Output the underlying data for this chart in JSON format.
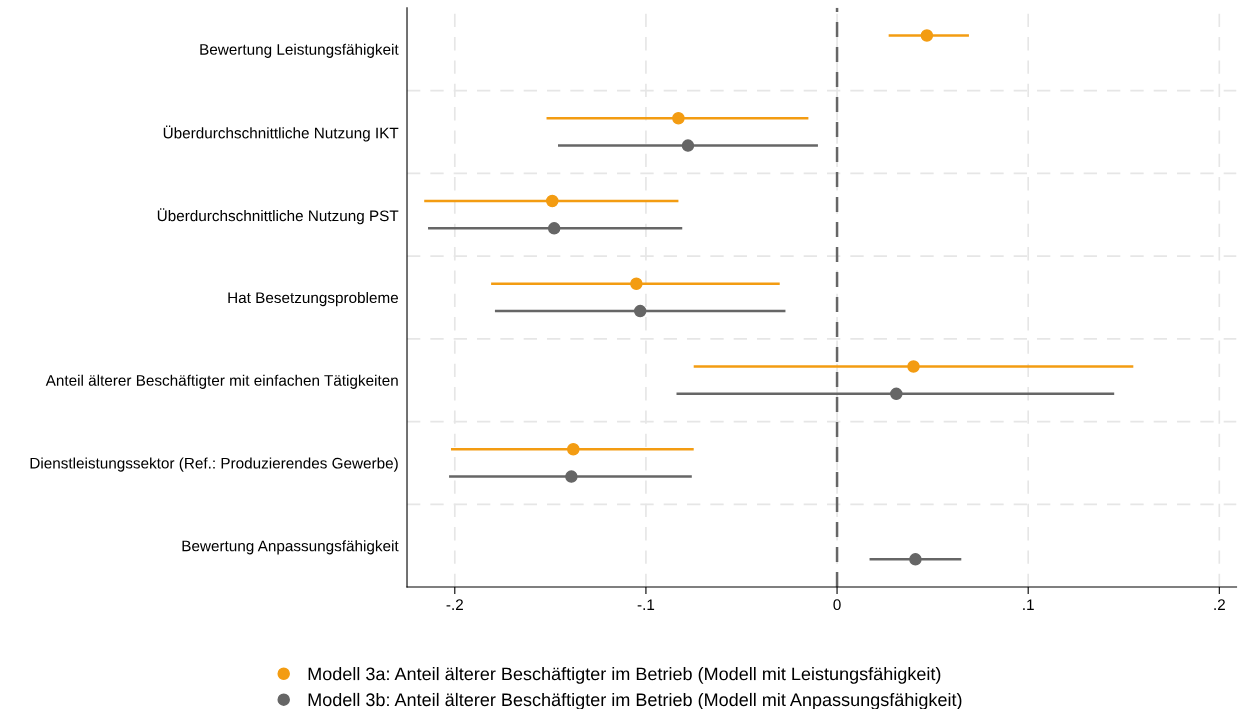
{
  "chart_data": {
    "type": "scatter",
    "orientation": "horizontal",
    "categories": [
      "Bewertung Leistungsfähigkeit",
      "Überdurchschnittliche Nutzung IKT",
      "Überdurchschnittliche Nutzung PST",
      "Hat Besetzungsprobleme",
      "Anteil älterer Beschäftigter mit einfachen Tätigkeiten",
      "Dienstleistungssektor (Ref.: Produzierendes Gewerbe)",
      "Bewertung Anpassungsfähigkeit"
    ],
    "series": [
      {
        "name": "Modell 3a: Anteil älterer Beschäftigter im Betrieb (Modell mit Leistungsfähigkeit)",
        "color": "#f39c12",
        "values": [
          0.047,
          -0.083,
          -0.149,
          -0.105,
          0.04,
          -0.138,
          null
        ],
        "errors": [
          [
            0.027,
            0.069
          ],
          [
            -0.152,
            -0.015
          ],
          [
            -0.216,
            -0.083
          ],
          [
            -0.181,
            -0.03
          ],
          [
            -0.075,
            0.155
          ],
          [
            -0.202,
            -0.075
          ],
          null
        ]
      },
      {
        "name": "Modell 3b: Anteil älterer Beschäftigter im Betrieb (Modell mit Anpassungsfähigkeit)",
        "color": "#666666",
        "values": [
          null,
          -0.078,
          -0.148,
          -0.103,
          0.031,
          -0.139,
          0.041
        ],
        "errors": [
          null,
          [
            -0.146,
            -0.01
          ],
          [
            -0.214,
            -0.081
          ],
          [
            -0.179,
            -0.027
          ],
          [
            -0.084,
            0.145
          ],
          [
            -0.203,
            -0.076
          ],
          [
            0.017,
            0.065
          ]
        ]
      }
    ],
    "xlim": [
      -0.225,
      0.209
    ],
    "xticks": [
      {
        "value": -0.2,
        "label": "-.2"
      },
      {
        "value": -0.1,
        "label": "-.1"
      },
      0,
      {
        "value": 0.1,
        "label": ".1"
      },
      {
        "value": 0.2,
        "label": ".2"
      }
    ],
    "ref_lines": [
      {
        "axis": "x",
        "value": 0,
        "color": "#666666",
        "line_style": "dashed"
      }
    ],
    "grid": true,
    "legend": "bottom",
    "marker": "circle"
  }
}
